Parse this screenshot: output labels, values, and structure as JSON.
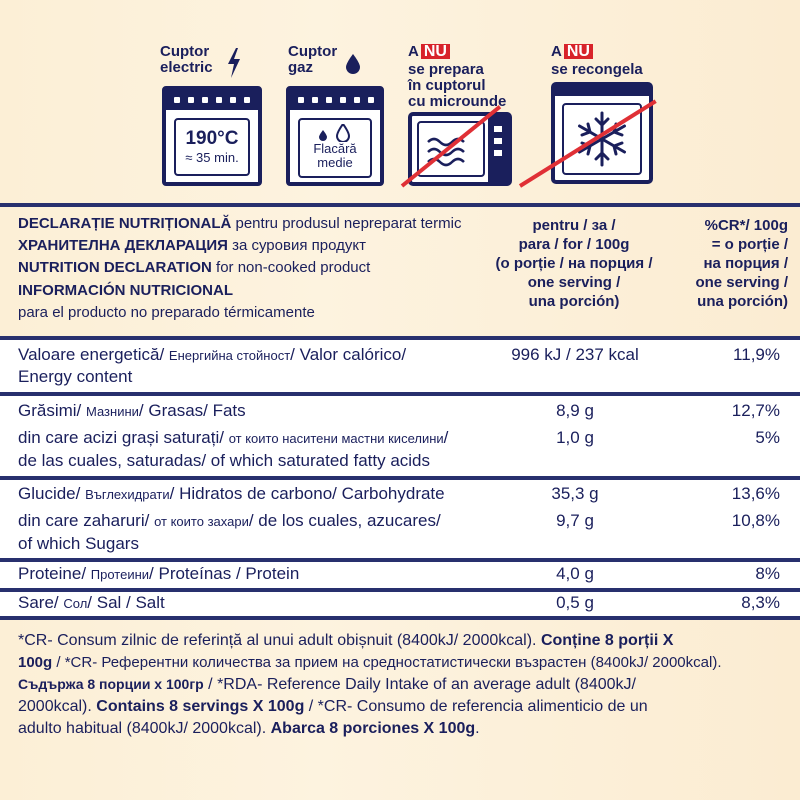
{
  "icons": {
    "electric": {
      "line1": "Cuptor",
      "line2": "electric",
      "temp": "190°C",
      "time": "≈ 35 min."
    },
    "gas": {
      "line1": "Cuptor",
      "line2": "gaz",
      "flame1": "Flacără",
      "flame2": "medie"
    },
    "microwave": {
      "prefix": "A",
      "nu": "NU",
      "line2": "se prepara",
      "line3": "în cuptorul",
      "line4": "cu microunde"
    },
    "freezer": {
      "prefix": "A",
      "nu": "NU",
      "line2": "se recongela"
    }
  },
  "header": {
    "l1_bold": "DECLARAȚIE NUTRIȚIONALĂ",
    "l1_rest": " pentru produsul nepreparat termic",
    "l2_bold": "ХРАНИТЕЛНА ДЕКЛАРАЦИЯ",
    "l2_rest": " за суровия продукт",
    "l3_bold": "NUTRITION DECLARATION",
    "l3_rest": " for non-cooked product",
    "l4_bold": "INFORMACIÓN NUTRICIONAL",
    "l5": "para el producto no preparado térmicamente",
    "col1": [
      "pentru / за /",
      "para / for / 100g",
      "(o porție / на порция /",
      "one serving /",
      "una porción)"
    ],
    "col2": [
      "%CR*/ 100g",
      "= o porție /",
      "на порция /",
      "one serving /",
      "una porción)"
    ]
  },
  "rows": {
    "energy": {
      "a": "Valoare energetică/ ",
      "b": "Енергийна стойност",
      "c": "/ Valor calórico/",
      "d": "Energy content",
      "v1": "996 kJ / 237 kcal",
      "v2": "11,9%"
    },
    "fat": {
      "a": "Grăsimi/ ",
      "b": "Мазнини",
      "c": "/ Grasas/ Fats",
      "v1": "8,9 g",
      "v2": "12,7%"
    },
    "satfat": {
      "a": "din care acizi grași saturați/ ",
      "b": "от които наситени мастни киселини",
      "c": "/",
      "d": "de las cuales, saturadas/ of which saturated fatty acids",
      "v1": "1,0 g",
      "v2": "5%"
    },
    "carb": {
      "a": "Glucide/ ",
      "b": "Въглехидрати",
      "c": "/ Hidratos de carbono/ Carbohydrate",
      "v1": "35,3 g",
      "v2": "13,6%"
    },
    "sugar": {
      "a": "din care zaharuri/ ",
      "b": "от които захари",
      "c": "/ de los cuales, azucares/",
      "d": "of which Sugars",
      "v1": "9,7 g",
      "v2": "10,8%"
    },
    "protein": {
      "a": "Proteine/ ",
      "b": "Протеини",
      "c": "/ Proteínas / Protein",
      "v1": "4,0 g",
      "v2": "8%"
    },
    "salt": {
      "a": "Sare/ ",
      "b": "Сол",
      "c": "/ Sal / Salt",
      "v1": "0,5 g",
      "v2": "8,3%"
    }
  },
  "footnote": {
    "l1a": "*CR- Consum zilnic de referință al unui adult obișnuit (8400kJ/ 2000kcal). ",
    "l1b": "Conține 8 porții X",
    "l2a": "100g",
    "l2b": " / *CR- Референтни количества за прием на средностатистически възрастен (8400kJ/ 2000kcal).",
    "l3a": "Съдържа 8 порции х 100гр",
    "l3b": " / *RDA- Reference Daily Intake of an average adult (8400kJ/",
    "l4a": "2000kcal). ",
    "l4b": "Contains 8 servings X 100g",
    "l4c": " / *CR- Consumo de referencia alimenticio de un",
    "l5a": "adulto habitual (8400kJ/ 2000kcal). ",
    "l5b": "Abarca 8 porciones X 100g",
    "l5c": "."
  }
}
